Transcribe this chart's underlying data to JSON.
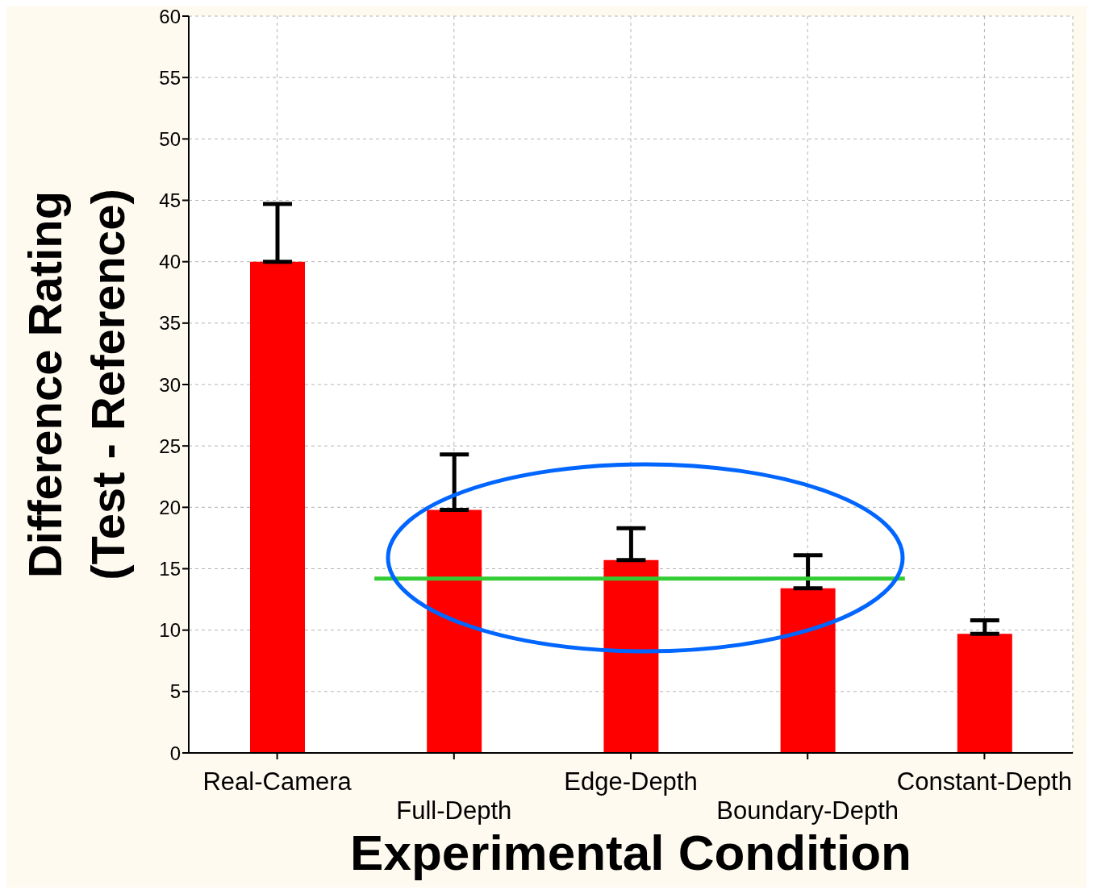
{
  "chart_data": {
    "type": "bar",
    "xlabel": "Experimental Condition",
    "ylabel": "Difference Rating\n(Test - Reference)",
    "categories": [
      "Real-Camera",
      "Full-Depth",
      "Edge-Depth",
      "Boundary-Depth",
      "Constant-Depth"
    ],
    "values": [
      40,
      19.8,
      15.7,
      13.4,
      9.7
    ],
    "errors": [
      [
        40,
        44.7
      ],
      [
        19.8,
        24.3
      ],
      [
        15.7,
        18.3
      ],
      [
        13.4,
        16.1
      ],
      [
        9.7,
        10.8
      ]
    ],
    "color": "#ff0000",
    "ylim": [
      0,
      60
    ],
    "yticks": [
      0,
      5,
      10,
      15,
      20,
      25,
      30,
      35,
      40,
      45,
      50,
      55,
      60
    ],
    "grid": true,
    "ref_lines": [
      {
        "axis": "y",
        "value": 14.2,
        "color": "#33cc33"
      }
    ]
  }
}
